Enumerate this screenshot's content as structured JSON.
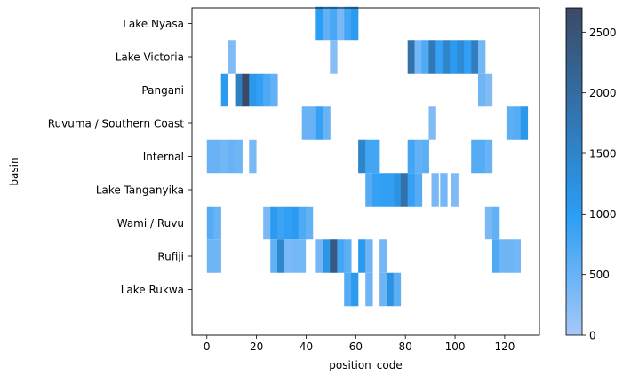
{
  "chart_data": {
    "type": "heatmap",
    "title": "",
    "xlabel": "position_code",
    "ylabel": "basin",
    "xlim": [
      -6,
      134
    ],
    "x_ticks": [
      0,
      20,
      40,
      60,
      80,
      100,
      120
    ],
    "basins": [
      "Lake Nyasa",
      "Lake Victoria",
      "Pangani",
      "Ruvuma / Southern Coast",
      "Internal",
      "Lake Tanganyika",
      "Wami / Ruvu",
      "Rufiji",
      "Lake Rukwa"
    ],
    "bin_width": 2.84,
    "colorbar": {
      "range": [
        0,
        2700
      ],
      "ticks": [
        0,
        500,
        1000,
        1500,
        2000,
        2500
      ],
      "colors": [
        "#a6c8f7",
        "#2a9df4",
        "#3b4a66"
      ],
      "stops": [
        0,
        0.37,
        1
      ]
    },
    "cells": [
      {
        "basin": "Lake Nyasa",
        "x": 43.9,
        "v": 1000
      },
      {
        "basin": "Lake Nyasa",
        "x": 46.8,
        "v": 550
      },
      {
        "basin": "Lake Nyasa",
        "x": 49.6,
        "v": 750
      },
      {
        "basin": "Lake Nyasa",
        "x": 52.4,
        "v": 350
      },
      {
        "basin": "Lake Nyasa",
        "x": 55.3,
        "v": 800
      },
      {
        "basin": "Lake Nyasa",
        "x": 58.1,
        "v": 1050
      },
      {
        "basin": "Lake Victoria",
        "x": 8.5,
        "v": 300
      },
      {
        "basin": "Lake Victoria",
        "x": 49.6,
        "v": 250
      },
      {
        "basin": "Lake Victoria",
        "x": 80.9,
        "v": 1900
      },
      {
        "basin": "Lake Victoria",
        "x": 83.7,
        "v": 400
      },
      {
        "basin": "Lake Victoria",
        "x": 86.5,
        "v": 700
      },
      {
        "basin": "Lake Victoria",
        "x": 89.4,
        "v": 1750
      },
      {
        "basin": "Lake Victoria",
        "x": 92.2,
        "v": 900
      },
      {
        "basin": "Lake Victoria",
        "x": 95.1,
        "v": 1500
      },
      {
        "basin": "Lake Victoria",
        "x": 97.9,
        "v": 1050
      },
      {
        "basin": "Lake Victoria",
        "x": 100.8,
        "v": 1350
      },
      {
        "basin": "Lake Victoria",
        "x": 103.6,
        "v": 950
      },
      {
        "basin": "Lake Victoria",
        "x": 106.5,
        "v": 1650
      },
      {
        "basin": "Lake Victoria",
        "x": 109.3,
        "v": 400
      },
      {
        "basin": "Pangani",
        "x": 5.7,
        "v": 1050
      },
      {
        "basin": "Pangani",
        "x": 11.4,
        "v": 1600
      },
      {
        "basin": "Pangani",
        "x": 14.2,
        "v": 2700
      },
      {
        "basin": "Pangani",
        "x": 17.0,
        "v": 1100
      },
      {
        "basin": "Pangani",
        "x": 19.9,
        "v": 950
      },
      {
        "basin": "Pangani",
        "x": 22.7,
        "v": 700
      },
      {
        "basin": "Pangani",
        "x": 25.6,
        "v": 550
      },
      {
        "basin": "Pangani",
        "x": 109.3,
        "v": 450
      },
      {
        "basin": "Pangani",
        "x": 112.1,
        "v": 300
      },
      {
        "basin": "Ruvuma / Southern Coast",
        "x": 38.3,
        "v": 500
      },
      {
        "basin": "Ruvuma / Southern Coast",
        "x": 41.1,
        "v": 500
      },
      {
        "basin": "Ruvuma / Southern Coast",
        "x": 44.0,
        "v": 900
      },
      {
        "basin": "Ruvuma / Southern Coast",
        "x": 46.8,
        "v": 500
      },
      {
        "basin": "Ruvuma / Southern Coast",
        "x": 89.4,
        "v": 300
      },
      {
        "basin": "Ruvuma / Southern Coast",
        "x": 120.7,
        "v": 600
      },
      {
        "basin": "Ruvuma / Southern Coast",
        "x": 123.5,
        "v": 650
      },
      {
        "basin": "Ruvuma / Southern Coast",
        "x": 126.4,
        "v": 1100
      },
      {
        "basin": "Internal",
        "x": 0.0,
        "v": 500
      },
      {
        "basin": "Internal",
        "x": 2.8,
        "v": 500
      },
      {
        "basin": "Internal",
        "x": 5.7,
        "v": 400
      },
      {
        "basin": "Internal",
        "x": 8.5,
        "v": 500
      },
      {
        "basin": "Internal",
        "x": 11.4,
        "v": 450
      },
      {
        "basin": "Internal",
        "x": 17.0,
        "v": 350
      },
      {
        "basin": "Internal",
        "x": 61.0,
        "v": 1500
      },
      {
        "basin": "Internal",
        "x": 63.9,
        "v": 800
      },
      {
        "basin": "Internal",
        "x": 66.7,
        "v": 800
      },
      {
        "basin": "Internal",
        "x": 80.9,
        "v": 800
      },
      {
        "basin": "Internal",
        "x": 83.7,
        "v": 550
      },
      {
        "basin": "Internal",
        "x": 86.6,
        "v": 600
      },
      {
        "basin": "Internal",
        "x": 106.5,
        "v": 650
      },
      {
        "basin": "Internal",
        "x": 109.3,
        "v": 650
      },
      {
        "basin": "Internal",
        "x": 112.1,
        "v": 500
      },
      {
        "basin": "Lake Tanganyika",
        "x": 63.9,
        "v": 650
      },
      {
        "basin": "Lake Tanganyika",
        "x": 66.7,
        "v": 900
      },
      {
        "basin": "Lake Tanganyika",
        "x": 69.6,
        "v": 950
      },
      {
        "basin": "Lake Tanganyika",
        "x": 72.4,
        "v": 950
      },
      {
        "basin": "Lake Tanganyika",
        "x": 75.3,
        "v": 1200
      },
      {
        "basin": "Lake Tanganyika",
        "x": 78.1,
        "v": 1900
      },
      {
        "basin": "Lake Tanganyika",
        "x": 80.9,
        "v": 900
      },
      {
        "basin": "Lake Tanganyika",
        "x": 83.8,
        "v": 650
      },
      {
        "basin": "Lake Tanganyika",
        "x": 90.5,
        "v": 350
      },
      {
        "basin": "Lake Tanganyika",
        "x": 94.0,
        "v": 400
      },
      {
        "basin": "Lake Tanganyika",
        "x": 98.4,
        "v": 300
      },
      {
        "basin": "Wami / Ruvu",
        "x": 0.0,
        "v": 650
      },
      {
        "basin": "Wami / Ruvu",
        "x": 2.8,
        "v": 500
      },
      {
        "basin": "Wami / Ruvu",
        "x": 22.7,
        "v": 350
      },
      {
        "basin": "Wami / Ruvu",
        "x": 25.6,
        "v": 1050
      },
      {
        "basin": "Wami / Ruvu",
        "x": 28.4,
        "v": 850
      },
      {
        "basin": "Wami / Ruvu",
        "x": 31.2,
        "v": 950
      },
      {
        "basin": "Wami / Ruvu",
        "x": 34.1,
        "v": 1050
      },
      {
        "basin": "Wami / Ruvu",
        "x": 36.9,
        "v": 700
      },
      {
        "basin": "Wami / Ruvu",
        "x": 39.8,
        "v": 550
      },
      {
        "basin": "Wami / Ruvu",
        "x": 112.1,
        "v": 350
      },
      {
        "basin": "Wami / Ruvu",
        "x": 115.0,
        "v": 550
      },
      {
        "basin": "Rufiji",
        "x": 0.0,
        "v": 450
      },
      {
        "basin": "Rufiji",
        "x": 2.8,
        "v": 450
      },
      {
        "basin": "Rufiji",
        "x": 25.6,
        "v": 550
      },
      {
        "basin": "Rufiji",
        "x": 28.4,
        "v": 1450
      },
      {
        "basin": "Rufiji",
        "x": 31.2,
        "v": 350
      },
      {
        "basin": "Rufiji",
        "x": 34.1,
        "v": 400
      },
      {
        "basin": "Rufiji",
        "x": 36.9,
        "v": 400
      },
      {
        "basin": "Rufiji",
        "x": 43.9,
        "v": 400
      },
      {
        "basin": "Rufiji",
        "x": 46.8,
        "v": 1150
      },
      {
        "basin": "Rufiji",
        "x": 49.6,
        "v": 2400
      },
      {
        "basin": "Rufiji",
        "x": 52.5,
        "v": 800
      },
      {
        "basin": "Rufiji",
        "x": 55.3,
        "v": 600
      },
      {
        "basin": "Rufiji",
        "x": 61.0,
        "v": 1050
      },
      {
        "basin": "Rufiji",
        "x": 63.9,
        "v": 450
      },
      {
        "basin": "Rufiji",
        "x": 69.6,
        "v": 400
      },
      {
        "basin": "Rufiji",
        "x": 115.0,
        "v": 700
      },
      {
        "basin": "Rufiji",
        "x": 117.8,
        "v": 450
      },
      {
        "basin": "Rufiji",
        "x": 120.7,
        "v": 450
      },
      {
        "basin": "Rufiji",
        "x": 123.5,
        "v": 400
      },
      {
        "basin": "Lake Rukwa",
        "x": 55.3,
        "v": 650
      },
      {
        "basin": "Lake Rukwa",
        "x": 58.1,
        "v": 1050
      },
      {
        "basin": "Lake Rukwa",
        "x": 63.9,
        "v": 450
      },
      {
        "basin": "Lake Rukwa",
        "x": 69.6,
        "v": 450
      },
      {
        "basin": "Lake Rukwa",
        "x": 72.4,
        "v": 1200
      },
      {
        "basin": "Lake Rukwa",
        "x": 75.2,
        "v": 600
      }
    ]
  }
}
